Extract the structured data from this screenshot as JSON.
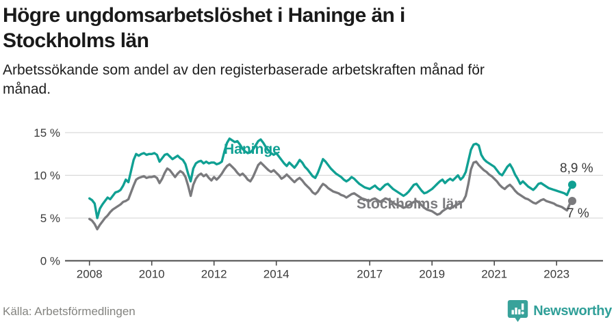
{
  "header": {
    "title_line1": "Högre ungdomsarbetslöshet i Haninge än i",
    "title_line2": "Stockholms län",
    "subtitle_line1": "Arbetssökande som andel av den registerbaserade arbetskraften månad för",
    "subtitle_line2": "månad."
  },
  "chart_data": {
    "type": "line",
    "title": "Högre ungdomsarbetslöshet i Haninge än i Stockholms län",
    "subtitle": "Arbetssökande som andel av den registerbaserade arbetskraften månad för månad.",
    "grid": "horizontal",
    "x_axis": {
      "start_year": 2008,
      "step": "month",
      "tick_years": [
        2008,
        2010,
        2012,
        2014,
        2017,
        2019,
        2021,
        2023
      ]
    },
    "y_axis": {
      "ticks": [
        0,
        5,
        10,
        15
      ],
      "tick_label_suffix": " %",
      "unit": "%",
      "ylim": [
        0,
        16.5
      ]
    },
    "series": [
      {
        "id": "stockholms-lan",
        "name": "Stockholms län",
        "color": "#7a7a7d",
        "end_value_label": "7 %",
        "values": [
          4.9,
          4.7,
          4.3,
          3.7,
          4.2,
          4.6,
          5.0,
          5.3,
          5.7,
          6.0,
          6.2,
          6.4,
          6.6,
          6.9,
          7.0,
          7.2,
          8.0,
          8.8,
          9.5,
          9.7,
          9.8,
          9.9,
          9.7,
          9.8,
          9.8,
          9.9,
          9.7,
          9.1,
          9.6,
          10.3,
          10.8,
          10.6,
          10.2,
          9.8,
          10.2,
          10.5,
          10.3,
          9.8,
          8.8,
          7.6,
          8.9,
          9.6,
          10.0,
          10.2,
          9.9,
          10.1,
          9.7,
          9.4,
          9.8,
          9.5,
          9.8,
          10.2,
          10.7,
          11.1,
          11.3,
          11.0,
          10.7,
          10.3,
          10.0,
          10.2,
          9.9,
          9.5,
          9.3,
          9.8,
          10.5,
          11.2,
          11.5,
          11.2,
          10.9,
          10.6,
          10.4,
          10.6,
          10.3,
          10.0,
          9.6,
          9.8,
          10.1,
          9.8,
          9.5,
          9.2,
          9.5,
          9.7,
          9.4,
          9.0,
          8.7,
          8.4,
          8.0,
          7.8,
          8.1,
          8.6,
          9.0,
          8.8,
          8.5,
          8.3,
          8.1,
          8.0,
          7.9,
          7.7,
          7.6,
          7.4,
          7.6,
          7.8,
          7.9,
          7.7,
          7.5,
          7.3,
          7.2,
          7.1,
          7.0,
          7.2,
          7.3,
          7.1,
          6.9,
          7.1,
          7.3,
          7.2,
          7.0,
          6.8,
          6.6,
          6.5,
          6.4,
          6.2,
          6.3,
          6.5,
          6.7,
          6.9,
          7.0,
          6.8,
          6.5,
          6.2,
          6.0,
          5.9,
          5.8,
          5.6,
          5.4,
          5.5,
          5.8,
          6.0,
          6.2,
          6.1,
          6.3,
          6.5,
          6.6,
          6.8,
          7.0,
          7.6,
          9.0,
          10.7,
          11.5,
          11.6,
          11.2,
          10.9,
          10.6,
          10.4,
          10.1,
          9.9,
          9.6,
          9.3,
          8.9,
          8.6,
          8.4,
          8.7,
          8.9,
          8.6,
          8.2,
          7.9,
          7.7,
          7.5,
          7.3,
          7.2,
          7.0,
          6.8,
          6.7,
          6.9,
          7.1,
          7.2,
          7.0,
          6.9,
          6.8,
          6.7,
          6.5,
          6.4,
          6.3,
          6.1,
          5.9,
          6.6,
          7.0
        ]
      },
      {
        "id": "haninge",
        "name": "Haninge",
        "color": "#10a093",
        "end_value_label": "8,9 %",
        "values": [
          7.3,
          7.1,
          6.7,
          5.0,
          6.1,
          6.6,
          7.0,
          7.4,
          7.2,
          7.6,
          8.0,
          8.1,
          8.3,
          8.8,
          9.5,
          9.2,
          10.5,
          11.8,
          12.5,
          12.3,
          12.5,
          12.6,
          12.4,
          12.5,
          12.5,
          12.6,
          12.4,
          11.6,
          12.0,
          12.4,
          12.5,
          12.2,
          11.9,
          12.1,
          12.3,
          12.0,
          11.8,
          11.3,
          10.2,
          9.3,
          10.8,
          11.4,
          11.6,
          11.7,
          11.4,
          11.6,
          11.4,
          11.5,
          11.5,
          11.3,
          11.4,
          11.6,
          12.8,
          13.8,
          14.3,
          14.1,
          13.9,
          14.0,
          13.6,
          13.1,
          12.8,
          12.6,
          12.7,
          13.0,
          13.5,
          14.0,
          14.2,
          13.8,
          13.3,
          12.9,
          12.6,
          12.4,
          12.6,
          12.2,
          11.8,
          11.4,
          11.1,
          11.5,
          11.2,
          10.9,
          11.3,
          11.8,
          11.5,
          11.0,
          10.7,
          10.3,
          9.9,
          9.7,
          10.3,
          11.1,
          11.9,
          11.6,
          11.2,
          10.8,
          10.5,
          10.2,
          10.0,
          9.8,
          9.5,
          9.3,
          9.5,
          9.8,
          9.6,
          9.3,
          9.0,
          8.8,
          8.6,
          8.5,
          8.4,
          8.6,
          8.8,
          8.5,
          8.3,
          8.6,
          8.9,
          9.0,
          8.7,
          8.4,
          8.2,
          8.0,
          7.8,
          7.6,
          7.8,
          8.1,
          8.5,
          8.9,
          9.0,
          8.6,
          8.2,
          7.9,
          8.0,
          8.2,
          8.4,
          8.7,
          9.0,
          9.3,
          9.5,
          9.1,
          9.4,
          9.6,
          9.4,
          9.7,
          10.0,
          9.5,
          9.8,
          10.4,
          11.7,
          13.0,
          13.6,
          13.7,
          13.5,
          12.4,
          11.9,
          11.6,
          11.4,
          11.2,
          11.0,
          10.6,
          10.2,
          10.0,
          10.5,
          11.0,
          11.3,
          10.8,
          10.1,
          9.6,
          9.0,
          9.3,
          9.0,
          8.7,
          8.5,
          8.3,
          8.6,
          9.0,
          9.1,
          8.9,
          8.7,
          8.5,
          8.4,
          8.3,
          8.2,
          8.1,
          8.0,
          7.9,
          7.7,
          8.4,
          8.9
        ]
      }
    ]
  },
  "footer": {
    "source": "Källa: Arbetsförmedlingen",
    "brand": "Newsworthy",
    "brand_color": "#38a29a"
  }
}
